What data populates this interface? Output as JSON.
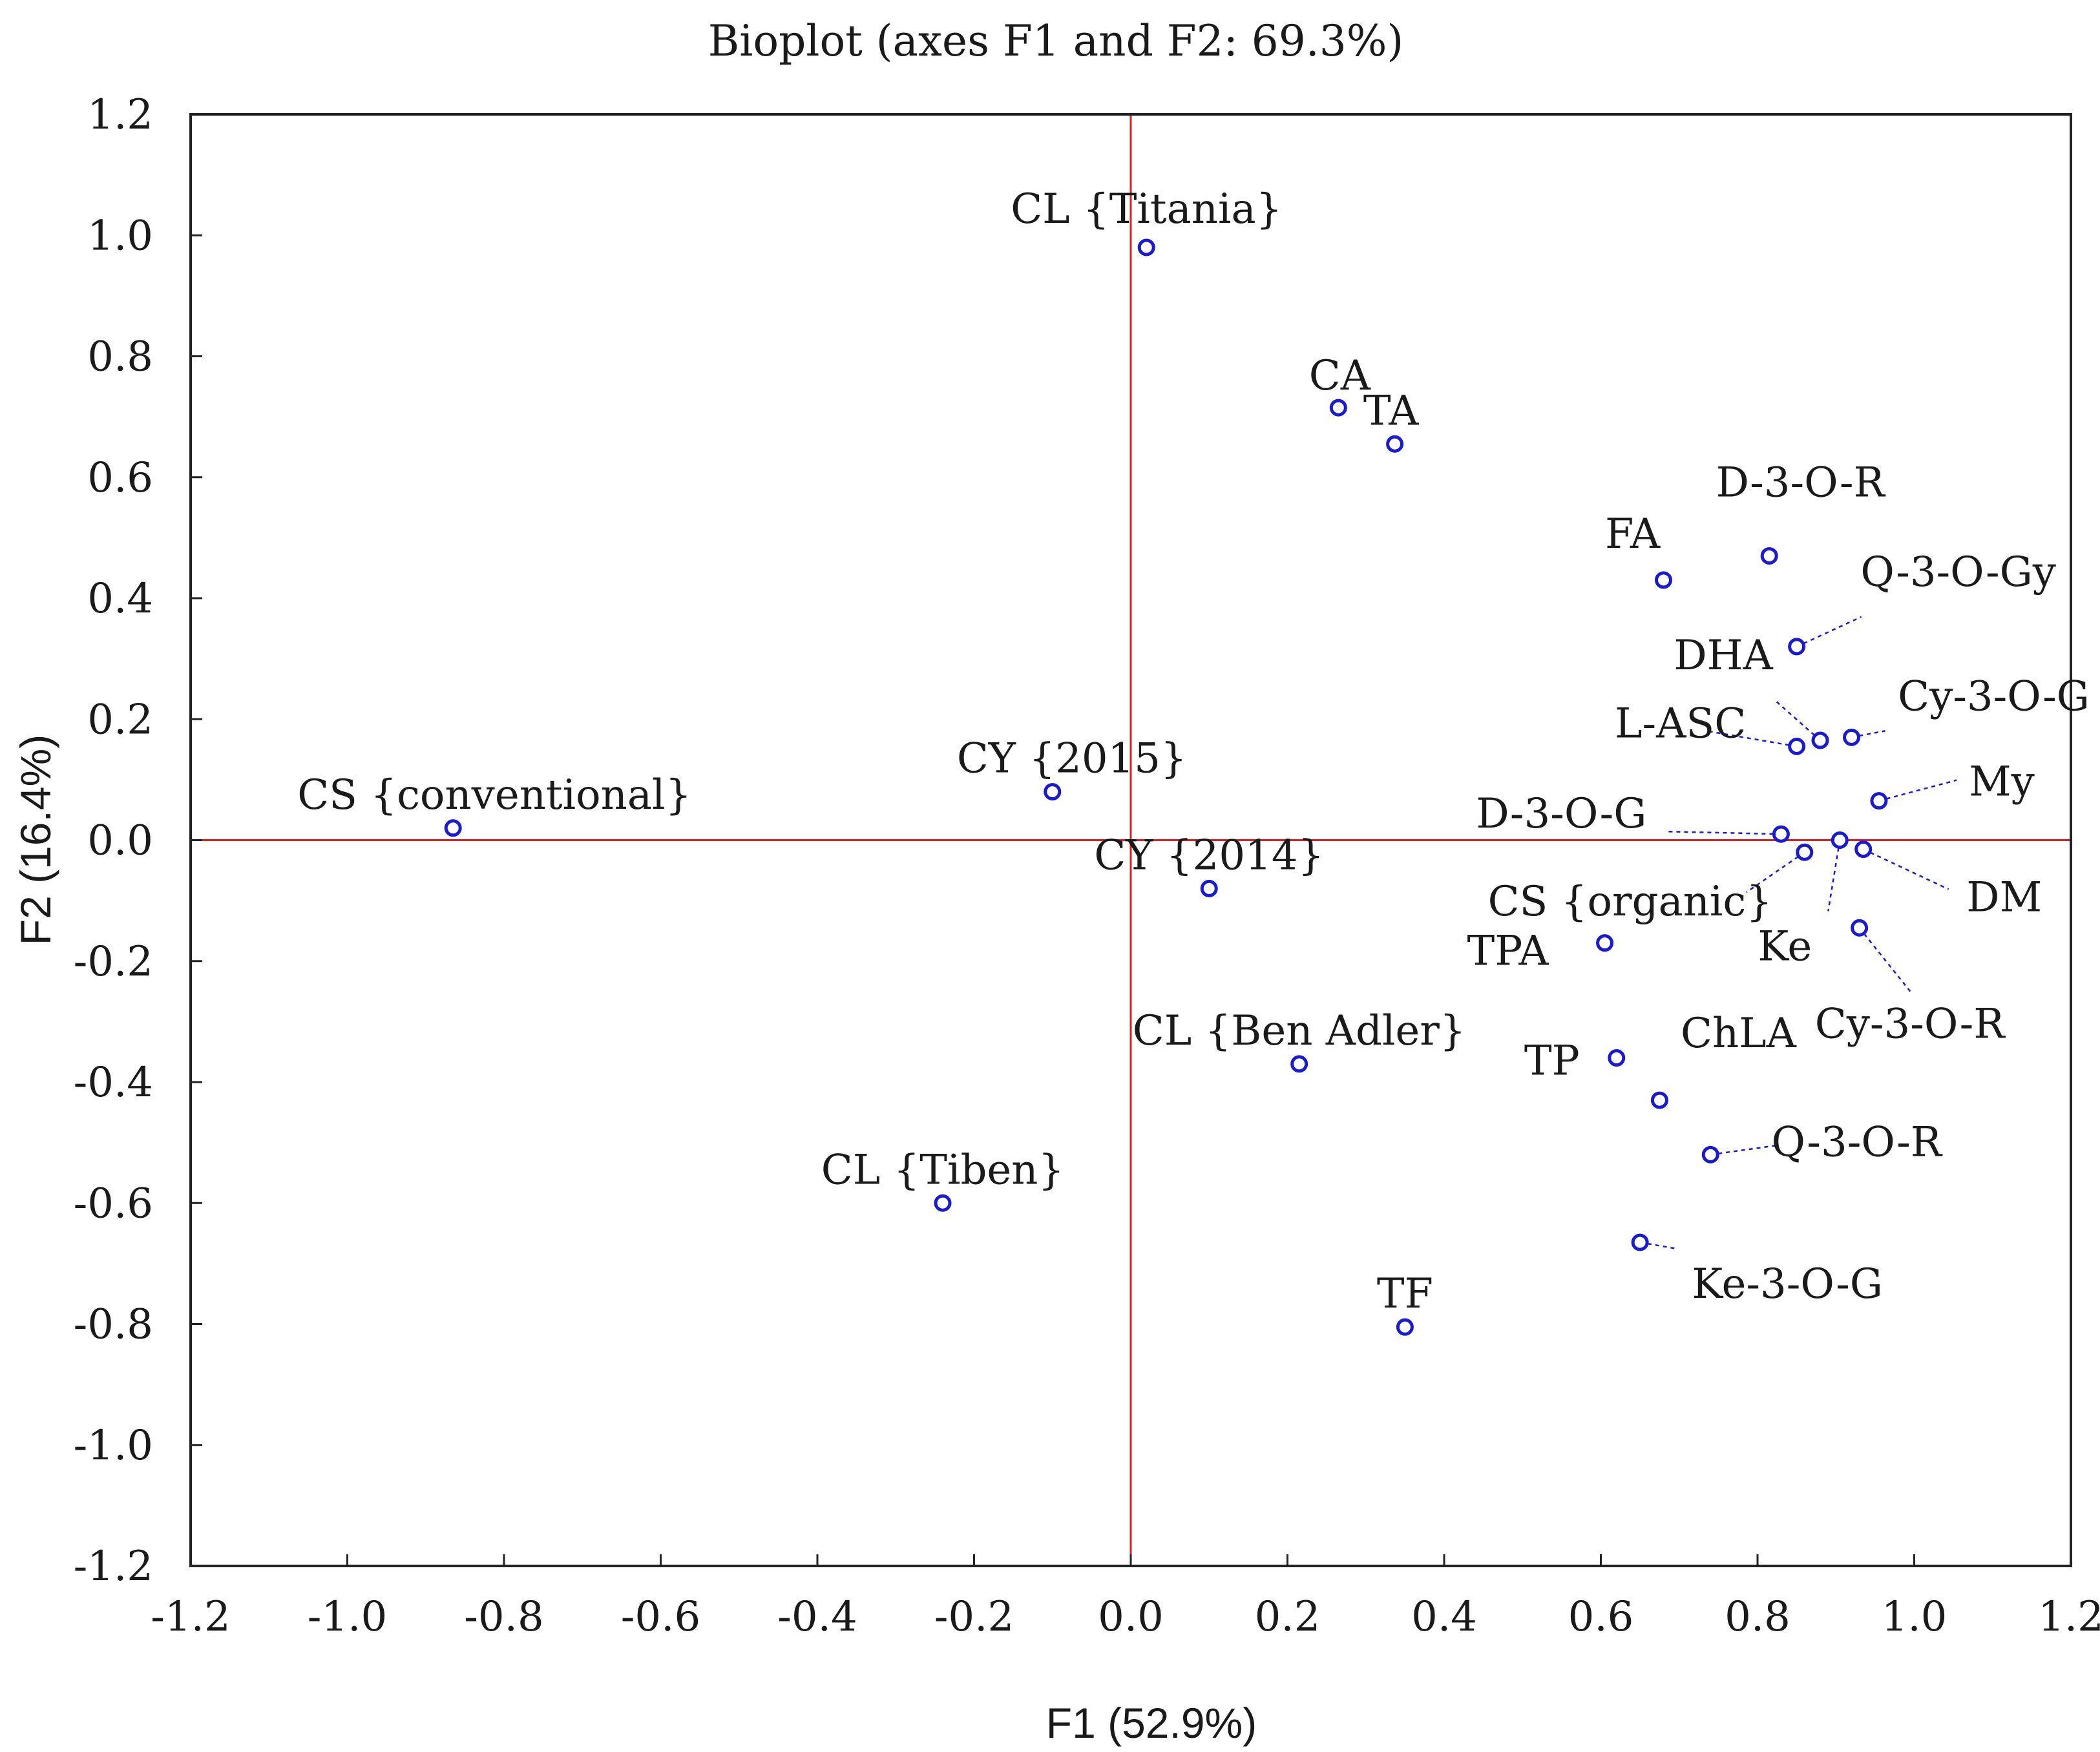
{
  "chart_data": {
    "type": "scatter",
    "title": "Bioplot (axes F1 and F2: 69.3%)",
    "xlabel": "F1 (52.9%)",
    "ylabel": "F2 (16.4%)",
    "xlim": [
      -1.2,
      1.2
    ],
    "ylim": [
      -1.2,
      1.2
    ],
    "xticks": [
      "-1.2",
      "-1.0",
      "-0.8",
      "-0.6",
      "-0.4",
      "-0.2",
      "0.0",
      "0.2",
      "0.4",
      "0.6",
      "0.8",
      "1.0",
      "1.2"
    ],
    "yticks": [
      "1.2",
      "1.0",
      "0.8",
      "0.6",
      "0.4",
      "0.2",
      "0.0",
      "-0.2",
      "-0.4",
      "-0.6",
      "-0.8",
      "-1.0",
      "-1.2"
    ],
    "reference_lines": {
      "x": 0,
      "y": 0,
      "color": "#e02020"
    },
    "marker_color": "#1a1ad0",
    "points": [
      {
        "label": "CL {Titania}",
        "x": 0.02,
        "y": 0.98
      },
      {
        "label": "CA",
        "x": 0.265,
        "y": 0.715
      },
      {
        "label": "TA",
        "x": 0.337,
        "y": 0.655
      },
      {
        "label": "D-3-O-R",
        "x": 0.815,
        "y": 0.47
      },
      {
        "label": "FA",
        "x": 0.68,
        "y": 0.43
      },
      {
        "label": "Q-3-O-Gy",
        "x": 0.85,
        "y": 0.32
      },
      {
        "label": "DHA",
        "x": 0.88,
        "y": 0.165
      },
      {
        "label": "Cy-3-O-G",
        "x": 0.92,
        "y": 0.17
      },
      {
        "label": "L-ASC",
        "x": 0.85,
        "y": 0.155
      },
      {
        "label": "CY {2015}",
        "x": -0.1,
        "y": 0.08
      },
      {
        "label": "My",
        "x": 0.955,
        "y": 0.065
      },
      {
        "label": "CS {conventional}",
        "x": -0.865,
        "y": 0.02
      },
      {
        "label": "D-3-O-G",
        "x": 0.83,
        "y": 0.01
      },
      {
        "label": "Ke",
        "x": 0.905,
        "y": 0.0
      },
      {
        "label": "CS {organic}",
        "x": 0.86,
        "y": -0.02
      },
      {
        "label": "DM",
        "x": 0.935,
        "y": -0.015
      },
      {
        "label": "CY {2014}",
        "x": 0.1,
        "y": -0.08
      },
      {
        "label": "Cy-3-O-R",
        "x": 0.93,
        "y": -0.145
      },
      {
        "label": "TPA",
        "x": 0.605,
        "y": -0.17
      },
      {
        "label": "CL {Ben Adler}",
        "x": 0.215,
        "y": -0.37
      },
      {
        "label": "TP",
        "x": 0.62,
        "y": -0.36
      },
      {
        "label": "ChLA",
        "x": 0.675,
        "y": -0.43
      },
      {
        "label": "Q-3-O-R",
        "x": 0.74,
        "y": -0.52
      },
      {
        "label": "CL {Tiben}",
        "x": -0.24,
        "y": -0.6
      },
      {
        "label": "Ke-3-O-G",
        "x": 0.65,
        "y": -0.665
      },
      {
        "label": "TF",
        "x": 0.35,
        "y": -0.805
      }
    ]
  }
}
